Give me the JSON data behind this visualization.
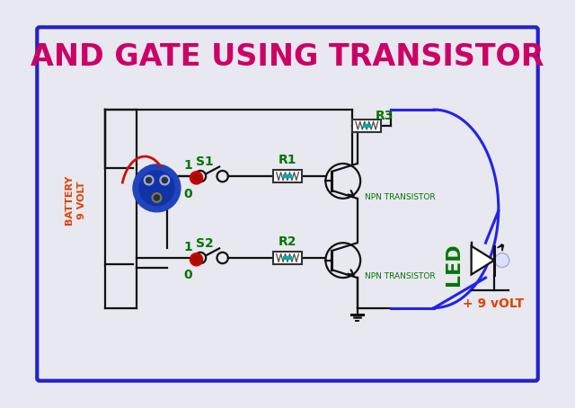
{
  "title": "AND GATE USING TRANSISTOR",
  "title_color": "#CC0066",
  "title_fontsize": 24,
  "bg_color": "#E8E8F0",
  "border_color": "#2222CC",
  "battery_label": "BATTERY\n9 VOLT",
  "battery_color": "#DD4400",
  "s1_label": "S1",
  "s2_label": "S2",
  "r1_label": "R1",
  "r2_label": "R2",
  "r3_label": "R3",
  "npn1_label": "NPN TRANSISTOR",
  "npn2_label": "NPN TRANSISTOR",
  "led_label": "LED",
  "volt_label": "+ 9 vOLT",
  "label_color": "#007700",
  "wire_color": "#111111",
  "blue_wire_color": "#2222EE",
  "one_zero_color": "#007700",
  "white": "#FFFFFF",
  "battery_blue": "#2244BB",
  "red_sw": "#CC1100"
}
